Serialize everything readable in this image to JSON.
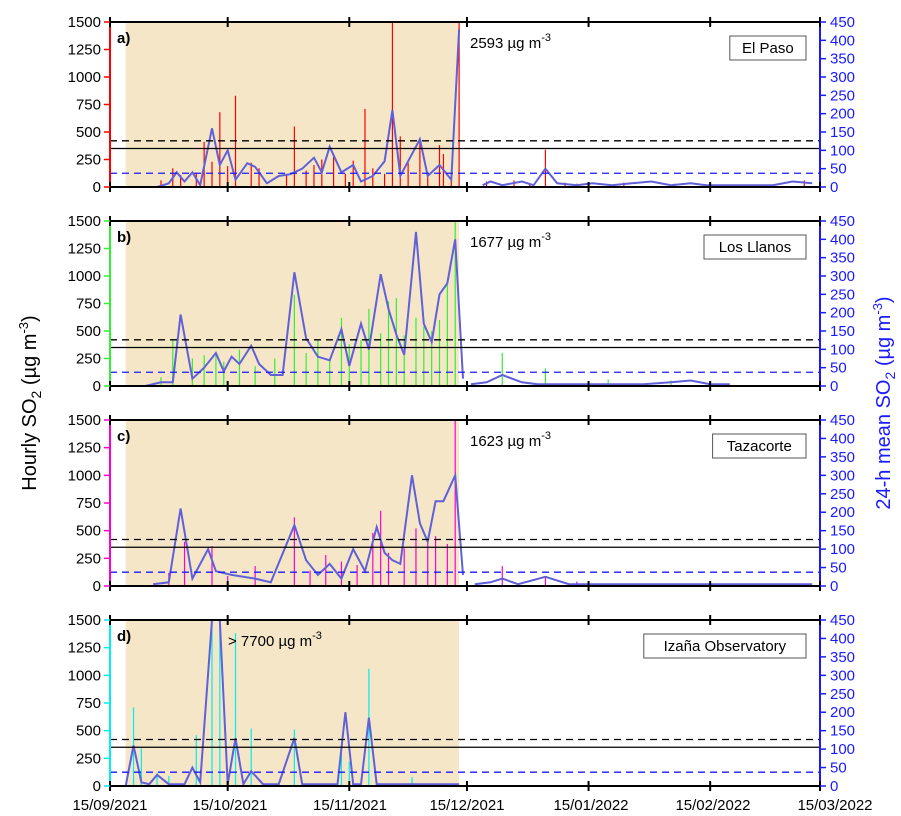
{
  "figure": {
    "left_axis_label": "Hourly SO",
    "left_axis_sub": "2",
    "left_axis_unit_pre": " (µg m",
    "left_axis_unit_sup": "-3",
    "left_axis_unit_post": ")",
    "right_axis_label": "24-h mean SO",
    "right_axis_sub": "2",
    "right_axis_unit_pre": " (µg m",
    "right_axis_unit_sup": "-3",
    "right_axis_unit_post": ")",
    "x_ticks": [
      "15/09/2021",
      "15/10/2021",
      "15/11/2021",
      "15/12/2021",
      "15/01/2022",
      "15/02/2022",
      "15/03/2022"
    ],
    "left_ticks": [
      "0",
      "250",
      "500",
      "750",
      "1000",
      "1250",
      "1500"
    ],
    "right_ticks": [
      "0",
      "50",
      "100",
      "150",
      "200",
      "250",
      "300",
      "350",
      "400",
      "450"
    ]
  },
  "colors": {
    "eruption_shading": "#f5e6c8",
    "daily_mean_line": "#6060d8",
    "hourly_threshold": "#000000",
    "daily_threshold_dashed": "#000000",
    "blue_threshold_dashed": "#1a1aff",
    "right_axis": "#1a1aff"
  },
  "chart_data": [
    {
      "type": "line",
      "panel": "a)",
      "station": "El Paso",
      "peak_annotation_pre": "2593 µg m",
      "peak_annotation_sup": "-3",
      "hourly_color": "#ff0000",
      "left_color": "#ff0000",
      "eruption_period": [
        "2021-09-19",
        "2021-12-13"
      ],
      "ylim_left": [
        0,
        1500
      ],
      "ylim_right": [
        0,
        450
      ],
      "reference_lines": {
        "hourly_solid": 350,
        "dashed_black": 420,
        "dashed_blue": 125
      },
      "hourly_peaks": [
        [
          "2021-09-28",
          60
        ],
        [
          "2021-10-01",
          170
        ],
        [
          "2021-10-03",
          110
        ],
        [
          "2021-10-07",
          130
        ],
        [
          "2021-10-09",
          410
        ],
        [
          "2021-10-11",
          230
        ],
        [
          "2021-10-13",
          680
        ],
        [
          "2021-10-15",
          190
        ],
        [
          "2021-10-17",
          830
        ],
        [
          "2021-10-21",
          220
        ],
        [
          "2021-10-23",
          170
        ],
        [
          "2021-10-30",
          110
        ],
        [
          "2021-11-01",
          550
        ],
        [
          "2021-11-04",
          150
        ],
        [
          "2021-11-06",
          200
        ],
        [
          "2021-11-08",
          250
        ],
        [
          "2021-11-11",
          300
        ],
        [
          "2021-11-14",
          120
        ],
        [
          "2021-11-16",
          240
        ],
        [
          "2021-11-19",
          710
        ],
        [
          "2021-11-21",
          170
        ],
        [
          "2021-11-24",
          120
        ],
        [
          "2021-11-26",
          1500
        ],
        [
          "2021-11-28",
          460
        ],
        [
          "2021-11-30",
          220
        ],
        [
          "2021-12-03",
          420
        ],
        [
          "2021-12-05",
          110
        ],
        [
          "2021-12-08",
          380
        ],
        [
          "2021-12-09",
          300
        ],
        [
          "2021-12-11",
          120
        ],
        [
          "2021-12-13",
          1500
        ],
        [
          "2021-12-20",
          50
        ],
        [
          "2021-12-27",
          60
        ],
        [
          "2021-12-31",
          30
        ],
        [
          "2022-01-04",
          340
        ],
        [
          "2022-01-09",
          40
        ],
        [
          "2022-01-12",
          30
        ],
        [
          "2022-01-24",
          40
        ],
        [
          "2022-02-06",
          30
        ],
        [
          "2022-03-11",
          60
        ]
      ],
      "daily_mean": [
        [
          "2021-09-20",
          0
        ],
        [
          "2021-09-27",
          0
        ],
        [
          "2021-09-30",
          10
        ],
        [
          "2021-10-02",
          40
        ],
        [
          "2021-10-04",
          15
        ],
        [
          "2021-10-06",
          40
        ],
        [
          "2021-10-08",
          5
        ],
        [
          "2021-10-11",
          160
        ],
        [
          "2021-10-13",
          60
        ],
        [
          "2021-10-15",
          100
        ],
        [
          "2021-10-17",
          20
        ],
        [
          "2021-10-20",
          65
        ],
        [
          "2021-10-22",
          55
        ],
        [
          "2021-10-25",
          10
        ],
        [
          "2021-10-28",
          30
        ],
        [
          "2021-10-31",
          35
        ],
        [
          "2021-11-03",
          50
        ],
        [
          "2021-11-06",
          80
        ],
        [
          "2021-11-08",
          40
        ],
        [
          "2021-11-10",
          110
        ],
        [
          "2021-11-13",
          40
        ],
        [
          "2021-11-16",
          60
        ],
        [
          "2021-11-18",
          15
        ],
        [
          "2021-11-21",
          30
        ],
        [
          "2021-11-24",
          70
        ],
        [
          "2021-11-26",
          210
        ],
        [
          "2021-11-28",
          30
        ],
        [
          "2021-11-30",
          70
        ],
        [
          "2021-12-03",
          130
        ],
        [
          "2021-12-05",
          30
        ],
        [
          "2021-12-08",
          60
        ],
        [
          "2021-12-11",
          20
        ],
        [
          "2021-12-13",
          430
        ]
      ],
      "daily_mean_after": [
        [
          "2021-12-19",
          5
        ],
        [
          "2021-12-21",
          15
        ],
        [
          "2021-12-24",
          5
        ],
        [
          "2021-12-29",
          15
        ],
        [
          "2022-01-01",
          5
        ],
        [
          "2022-01-04",
          50
        ],
        [
          "2022-01-07",
          10
        ],
        [
          "2022-01-12",
          5
        ],
        [
          "2022-01-16",
          10
        ],
        [
          "2022-01-21",
          5
        ],
        [
          "2022-01-26",
          10
        ],
        [
          "2022-01-31",
          15
        ],
        [
          "2022-02-05",
          5
        ],
        [
          "2022-02-10",
          10
        ],
        [
          "2022-02-14",
          5
        ],
        [
          "2022-02-19",
          5
        ],
        [
          "2022-02-27",
          5
        ],
        [
          "2022-03-03",
          5
        ],
        [
          "2022-03-08",
          15
        ],
        [
          "2022-03-13",
          10
        ]
      ]
    },
    {
      "type": "line",
      "panel": "b)",
      "station": "Los Llanos",
      "peak_annotation_pre": "1677 µg m",
      "peak_annotation_sup": "-3",
      "hourly_color": "#33ee33",
      "left_color": "#33ee33",
      "eruption_period": [
        "2021-09-19",
        "2021-12-13"
      ],
      "ylim_left": [
        0,
        1500
      ],
      "ylim_right": [
        0,
        450
      ],
      "reference_lines": {
        "hourly_solid": 350,
        "dashed_black": 420,
        "dashed_blue": 125
      },
      "hourly_peaks": [
        [
          "2021-09-28",
          80
        ],
        [
          "2021-10-01",
          420
        ],
        [
          "2021-10-06",
          250
        ],
        [
          "2021-10-09",
          280
        ],
        [
          "2021-10-12",
          300
        ],
        [
          "2021-10-14",
          220
        ],
        [
          "2021-10-18",
          330
        ],
        [
          "2021-10-22",
          180
        ],
        [
          "2021-10-27",
          250
        ],
        [
          "2021-11-01",
          830
        ],
        [
          "2021-11-04",
          300
        ],
        [
          "2021-11-07",
          420
        ],
        [
          "2021-11-10",
          250
        ],
        [
          "2021-11-13",
          620
        ],
        [
          "2021-11-15",
          380
        ],
        [
          "2021-11-18",
          420
        ],
        [
          "2021-11-20",
          700
        ],
        [
          "2021-11-23",
          480
        ],
        [
          "2021-11-25",
          770
        ],
        [
          "2021-11-27",
          800
        ],
        [
          "2021-11-29",
          460
        ],
        [
          "2021-12-02",
          620
        ],
        [
          "2021-12-04",
          540
        ],
        [
          "2021-12-06",
          500
        ],
        [
          "2021-12-08",
          600
        ],
        [
          "2021-12-10",
          920
        ],
        [
          "2021-12-12",
          1500
        ],
        [
          "2021-12-24",
          300
        ],
        [
          "2022-01-04",
          160
        ],
        [
          "2022-01-20",
          60
        ],
        [
          "2022-02-05",
          50
        ]
      ],
      "daily_mean": [
        [
          "2021-09-24",
          0
        ],
        [
          "2021-09-28",
          10
        ],
        [
          "2021-10-01",
          10
        ],
        [
          "2021-10-03",
          195
        ],
        [
          "2021-10-06",
          20
        ],
        [
          "2021-10-09",
          50
        ],
        [
          "2021-10-12",
          90
        ],
        [
          "2021-10-14",
          40
        ],
        [
          "2021-10-16",
          80
        ],
        [
          "2021-10-18",
          60
        ],
        [
          "2021-10-21",
          110
        ],
        [
          "2021-10-23",
          60
        ],
        [
          "2021-10-26",
          30
        ],
        [
          "2021-10-29",
          30
        ],
        [
          "2021-11-01",
          310
        ],
        [
          "2021-11-04",
          130
        ],
        [
          "2021-11-07",
          80
        ],
        [
          "2021-11-10",
          70
        ],
        [
          "2021-11-13",
          155
        ],
        [
          "2021-11-15",
          55
        ],
        [
          "2021-11-18",
          170
        ],
        [
          "2021-11-20",
          100
        ],
        [
          "2021-11-23",
          305
        ],
        [
          "2021-11-25",
          210
        ],
        [
          "2021-11-27",
          140
        ],
        [
          "2021-11-29",
          85
        ],
        [
          "2021-12-02",
          420
        ],
        [
          "2021-12-04",
          170
        ],
        [
          "2021-12-06",
          120
        ],
        [
          "2021-12-08",
          250
        ],
        [
          "2021-12-10",
          280
        ],
        [
          "2021-12-12",
          400
        ],
        [
          "2021-12-14",
          20
        ]
      ],
      "daily_mean_after": [
        [
          "2021-12-16",
          5
        ],
        [
          "2021-12-20",
          10
        ],
        [
          "2021-12-24",
          30
        ],
        [
          "2021-12-29",
          10
        ],
        [
          "2022-01-02",
          5
        ],
        [
          "2022-01-08",
          5
        ],
        [
          "2022-01-15",
          5
        ],
        [
          "2022-01-22",
          5
        ],
        [
          "2022-01-29",
          5
        ],
        [
          "2022-02-05",
          10
        ],
        [
          "2022-02-10",
          15
        ],
        [
          "2022-02-15",
          5
        ],
        [
          "2022-02-20",
          5
        ]
      ]
    },
    {
      "type": "line",
      "panel": "c)",
      "station": "Tazacorte",
      "peak_annotation_pre": "1623 µg m",
      "peak_annotation_sup": "-3",
      "hourly_color": "#ff00cc",
      "left_color": "#ff00cc",
      "eruption_period": [
        "2021-09-19",
        "2021-12-13"
      ],
      "ylim_left": [
        0,
        1500
      ],
      "ylim_right": [
        0,
        450
      ],
      "reference_lines": {
        "hourly_solid": 350,
        "dashed_black": 420,
        "dashed_blue": 125
      },
      "hourly_peaks": [
        [
          "2021-09-30",
          120
        ],
        [
          "2021-10-04",
          400
        ],
        [
          "2021-10-11",
          360
        ],
        [
          "2021-10-15",
          90
        ],
        [
          "2021-10-22",
          180
        ],
        [
          "2021-11-01",
          620
        ],
        [
          "2021-11-05",
          140
        ],
        [
          "2021-11-09",
          280
        ],
        [
          "2021-11-13",
          220
        ],
        [
          "2021-11-17",
          190
        ],
        [
          "2021-11-21",
          480
        ],
        [
          "2021-11-23",
          680
        ],
        [
          "2021-11-25",
          300
        ],
        [
          "2021-11-29",
          340
        ],
        [
          "2021-12-02",
          520
        ],
        [
          "2021-12-05",
          400
        ],
        [
          "2021-12-07",
          450
        ],
        [
          "2021-12-10",
          380
        ],
        [
          "2021-12-12",
          1500
        ],
        [
          "2021-12-24",
          180
        ],
        [
          "2022-01-04",
          90
        ],
        [
          "2022-01-12",
          40
        ],
        [
          "2022-02-06",
          20
        ]
      ],
      "daily_mean": [
        [
          "2021-09-26",
          5
        ],
        [
          "2021-09-30",
          10
        ],
        [
          "2021-10-03",
          210
        ],
        [
          "2021-10-06",
          20
        ],
        [
          "2021-10-10",
          100
        ],
        [
          "2021-10-12",
          40
        ],
        [
          "2021-10-16",
          30
        ],
        [
          "2021-10-22",
          20
        ],
        [
          "2021-10-26",
          10
        ],
        [
          "2021-11-01",
          165
        ],
        [
          "2021-11-04",
          70
        ],
        [
          "2021-11-07",
          30
        ],
        [
          "2021-11-10",
          60
        ],
        [
          "2021-11-13",
          20
        ],
        [
          "2021-11-16",
          100
        ],
        [
          "2021-11-19",
          40
        ],
        [
          "2021-11-22",
          160
        ],
        [
          "2021-11-24",
          90
        ],
        [
          "2021-11-26",
          70
        ],
        [
          "2021-11-28",
          60
        ],
        [
          "2021-12-01",
          300
        ],
        [
          "2021-12-03",
          170
        ],
        [
          "2021-12-05",
          120
        ],
        [
          "2021-12-07",
          230
        ],
        [
          "2021-12-09",
          230
        ],
        [
          "2021-12-12",
          300
        ],
        [
          "2021-12-14",
          30
        ]
      ],
      "daily_mean_after": [
        [
          "2021-12-17",
          5
        ],
        [
          "2021-12-21",
          10
        ],
        [
          "2021-12-24",
          20
        ],
        [
          "2021-12-28",
          5
        ],
        [
          "2022-01-04",
          25
        ],
        [
          "2022-01-10",
          5
        ],
        [
          "2022-01-17",
          5
        ],
        [
          "2022-01-24",
          5
        ],
        [
          "2022-02-05",
          5
        ],
        [
          "2022-02-14",
          5
        ],
        [
          "2022-03-01",
          5
        ],
        [
          "2022-03-13",
          5
        ]
      ]
    },
    {
      "type": "line",
      "panel": "d)",
      "station": "Izaña Observatory",
      "peak_annotation_pre": "> 7700 µg m",
      "peak_annotation_sup": "-3",
      "hourly_color": "#00eeee",
      "left_color": "#00eeee",
      "eruption_period": [
        "2021-09-19",
        "2021-12-13"
      ],
      "ylim_left": [
        0,
        1500
      ],
      "ylim_right": [
        0,
        450
      ],
      "reference_lines": {
        "hourly_solid": 350,
        "dashed_black": 420,
        "dashed_blue": 125
      },
      "hourly_peaks": [
        [
          "2021-09-21",
          710
        ],
        [
          "2021-09-23",
          340
        ],
        [
          "2021-09-27",
          120
        ],
        [
          "2021-09-30",
          90
        ],
        [
          "2021-10-07",
          460
        ],
        [
          "2021-10-11",
          1500
        ],
        [
          "2021-10-13",
          1500
        ],
        [
          "2021-10-17",
          1380
        ],
        [
          "2021-10-21",
          520
        ],
        [
          "2021-11-01",
          510
        ],
        [
          "2021-11-13",
          290
        ],
        [
          "2021-11-15",
          220
        ],
        [
          "2021-11-20",
          1060
        ],
        [
          "2021-12-01",
          80
        ]
      ],
      "daily_mean": [
        [
          "2021-09-19",
          0
        ],
        [
          "2021-09-21",
          110
        ],
        [
          "2021-09-23",
          10
        ],
        [
          "2021-09-25",
          5
        ],
        [
          "2021-09-27",
          30
        ],
        [
          "2021-09-30",
          5
        ],
        [
          "2021-10-04",
          5
        ],
        [
          "2021-10-06",
          50
        ],
        [
          "2021-10-08",
          10
        ],
        [
          "2021-10-11",
          450
        ],
        [
          "2021-10-13",
          450
        ],
        [
          "2021-10-15",
          5
        ],
        [
          "2021-10-17",
          130
        ],
        [
          "2021-10-19",
          5
        ],
        [
          "2021-10-21",
          40
        ],
        [
          "2021-10-24",
          5
        ],
        [
          "2021-10-28",
          5
        ],
        [
          "2021-11-01",
          130
        ],
        [
          "2021-11-03",
          5
        ],
        [
          "2021-11-08",
          5
        ],
        [
          "2021-11-12",
          5
        ],
        [
          "2021-11-14",
          200
        ],
        [
          "2021-11-16",
          5
        ],
        [
          "2021-11-18",
          5
        ],
        [
          "2021-11-20",
          185
        ],
        [
          "2021-11-22",
          5
        ],
        [
          "2021-11-26",
          5
        ],
        [
          "2021-12-01",
          5
        ],
        [
          "2021-12-13",
          5
        ]
      ],
      "daily_mean_after": []
    }
  ]
}
